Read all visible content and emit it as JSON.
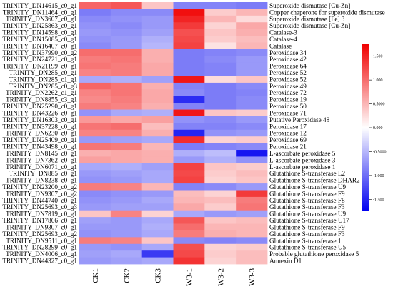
{
  "chart_data": {
    "type": "heatmap",
    "columns": [
      "CK1",
      "CK2",
      "CK3",
      "W3-1",
      "W3-2",
      "W3-3"
    ],
    "rows": [
      {
        "id": "TRINITY_DN14615_c0_g1",
        "label": "Superoxide dismutase [Cu-Zn]",
        "values": [
          1.05,
          1.15,
          0.4,
          -0.85,
          -0.85,
          -0.9
        ]
      },
      {
        "id": "TRINITY_DN11464_c0_g1",
        "label": "Copper chaperone for superoxide dismutase",
        "values": [
          -0.9,
          -0.8,
          -0.8,
          1.65,
          0.35,
          0.5
        ]
      },
      {
        "id": "TRINITY_DN3607_c0_g1",
        "label": "Superoxide dismutase [Fe] 3",
        "values": [
          -0.8,
          -0.75,
          -0.7,
          1.5,
          0.5,
          0.25
        ]
      },
      {
        "id": "TRINITY_DN25863_c0_g1",
        "label": "Superoxide dismutase [Cu-Zn]",
        "values": [
          -0.75,
          -0.8,
          -0.7,
          1.35,
          0.3,
          0.6
        ]
      },
      {
        "id": "TRINITY_DN14598_c0_g1",
        "label": "Catalase-3",
        "values": [
          -0.7,
          -0.75,
          -0.65,
          1.2,
          0.4,
          0.55
        ]
      },
      {
        "id": "TRINITY_DN15085_c0_g1",
        "label": "Catalase-4",
        "values": [
          -0.75,
          -0.7,
          -0.55,
          1.25,
          0.35,
          0.45
        ]
      },
      {
        "id": "TRINITY_DN16407_c0_g1",
        "label": "Catalase",
        "values": [
          -0.8,
          -0.7,
          -0.5,
          1.3,
          0.2,
          0.5
        ]
      },
      {
        "id": "TRINITY_DN37990_c0_g2",
        "label": "Peroxidase 34",
        "values": [
          1.0,
          1.0,
          0.55,
          -0.9,
          -0.85,
          -0.8
        ]
      },
      {
        "id": "TRINITY_DN24721_c0_g1",
        "label": "Peroxidase 42",
        "values": [
          0.9,
          0.95,
          0.55,
          -0.9,
          -0.8,
          -0.7
        ]
      },
      {
        "id": "TRINITY_DN21199_c0_g1",
        "label": "Peroxidase 64",
        "values": [
          0.95,
          0.9,
          0.6,
          -0.9,
          -0.85,
          -0.7
        ]
      },
      {
        "id": "TRINITY_DN285_c0_g1",
        "label": "Peroxidase 52",
        "values": [
          0.85,
          0.9,
          0.6,
          -0.9,
          -0.85,
          -0.7
        ]
      },
      {
        "id": "TRINITY_DN285_c1_g1",
        "label": "Peroxidase 52",
        "values": [
          -0.6,
          -0.55,
          -0.65,
          1.6,
          0.25,
          0.4
        ]
      },
      {
        "id": "TRINITY_DN285_c0_g3",
        "label": "Peroxidase 49",
        "values": [
          1.05,
          0.95,
          0.55,
          -0.85,
          -0.9,
          -0.8
        ]
      },
      {
        "id": "TRINITY_DN2262_c1_g1",
        "label": "Peroxidase 72",
        "values": [
          0.85,
          0.95,
          0.6,
          -0.8,
          -0.9,
          -0.85
        ]
      },
      {
        "id": "TRINITY_DN8855_c3_g1",
        "label": "Peroxidase 19",
        "values": [
          0.8,
          0.9,
          0.6,
          -1.45,
          -0.9,
          -0.8
        ]
      },
      {
        "id": "TRINITY_DN25290_c0_g1",
        "label": "Peroxidase 50",
        "values": [
          0.9,
          0.85,
          0.55,
          -0.85,
          -0.9,
          -0.8
        ]
      },
      {
        "id": "TRINITY_DN43226_c0_g1",
        "label": "Peroxidase 71",
        "values": [
          -0.75,
          -0.6,
          -0.55,
          1.6,
          0.4,
          0.35
        ]
      },
      {
        "id": "TRINITY_DN16303_c0_g1",
        "label": "Putative Peroxidase 48",
        "values": [
          0.7,
          0.6,
          0.65,
          -0.75,
          -0.8,
          -0.7
        ]
      },
      {
        "id": "TRINITY_DN37228_c0_g1",
        "label": "Peroxidase 17",
        "values": [
          0.95,
          1.0,
          0.45,
          -0.85,
          -0.85,
          -0.8
        ]
      },
      {
        "id": "TRINITY_DN6230_c0_g1",
        "label": "Peroxidase 12",
        "values": [
          0.85,
          0.85,
          0.55,
          -1.5,
          -0.75,
          -0.7
        ]
      },
      {
        "id": "TRINITY_DN25409_c0_g1",
        "label": "Peroxidase 69",
        "values": [
          -0.7,
          -0.65,
          -0.6,
          1.45,
          0.3,
          0.35
        ]
      },
      {
        "id": "TRINITY_DN43498_c0_g1",
        "label": "Peroxidase 21",
        "values": [
          0.95,
          0.9,
          0.5,
          -0.9,
          -0.85,
          -0.8
        ]
      },
      {
        "id": "TRINITY_DN8145_c0_g1",
        "label": "L-ascorbate peroxidase 5",
        "values": [
          0.55,
          0.6,
          0.55,
          -0.55,
          -0.45,
          -1.6
        ]
      },
      {
        "id": "TRINITY_DN7362_c0_g1",
        "label": "L-ascorbate peroxidase 3",
        "values": [
          0.65,
          0.6,
          0.55,
          -0.7,
          -0.55,
          -0.75
        ]
      },
      {
        "id": "TRINITY_DN6071_c0_g1",
        "label": "L-ascorbate peroxidase 1",
        "values": [
          -0.6,
          -0.55,
          -0.65,
          1.3,
          0.4,
          0.35
        ]
      },
      {
        "id": "TRINITY_DN885_c0_g1",
        "label": "Glutathione S-transferase L2",
        "values": [
          -0.7,
          -0.65,
          -0.6,
          1.25,
          0.35,
          0.45
        ]
      },
      {
        "id": "TRINITY_DN8238_c0_g1",
        "label": "Glutathione S-transferase DHAR2",
        "values": [
          -0.75,
          -0.7,
          -0.6,
          1.3,
          0.3,
          0.4
        ]
      },
      {
        "id": "TRINITY_DN23200_c0_g2",
        "label": "Glutathione S-transferase U9",
        "values": [
          0.9,
          0.85,
          0.5,
          -0.85,
          -0.8,
          -0.7
        ]
      },
      {
        "id": "TRINITY_DN9307_c0_g2",
        "label": "Glutathione S-transferase F9",
        "values": [
          -0.8,
          -0.75,
          -0.7,
          0.45,
          0.3,
          1.35
        ]
      },
      {
        "id": "TRINITY_DN44740_c0_g1",
        "label": "Glutathione S-transferase F8",
        "values": [
          -0.75,
          -0.7,
          -0.6,
          0.5,
          0.45,
          0.9
        ]
      },
      {
        "id": "TRINITY_DN25693_c0_g3",
        "label": "Glutathione S-transferase F3",
        "values": [
          -0.7,
          -0.65,
          -0.65,
          0.6,
          0.35,
          0.95
        ]
      },
      {
        "id": "TRINITY_DN7819_c0_g1",
        "label": "Glutathione S-transferase U9",
        "values": [
          0.4,
          0.85,
          0.3,
          -0.6,
          -0.7,
          -0.65
        ]
      },
      {
        "id": "TRINITY_DN17866_c0_g1",
        "label": "Glutathione S-transferase U17",
        "values": [
          -0.65,
          -0.7,
          -0.6,
          1.15,
          0.4,
          0.45
        ]
      },
      {
        "id": "TRINITY_DN9307_c0_g1",
        "label": "Glutathione S-transferase F9",
        "values": [
          -0.7,
          -0.7,
          -0.55,
          1.0,
          0.5,
          0.5
        ]
      },
      {
        "id": "TRINITY_DN25693_c0_g2",
        "label": "Glutathione S-transferase F3",
        "values": [
          -0.75,
          -0.7,
          -0.6,
          0.9,
          0.55,
          0.5
        ]
      },
      {
        "id": "TRINITY_DN9511_c0_g1",
        "label": "Glutathione S-transferase 1",
        "values": [
          0.9,
          0.85,
          0.4,
          -0.8,
          -0.85,
          -0.8
        ]
      },
      {
        "id": "TRINITY_DN28299_c0_g1",
        "label": "Glutathione S-transferase U5",
        "values": [
          -0.7,
          -0.75,
          -0.6,
          1.2,
          0.3,
          0.35
        ]
      },
      {
        "id": "TRINITY_DN4006_c0_g1",
        "label": "Probable glutathione peroxidase 5",
        "values": [
          -0.65,
          -0.6,
          -1.35,
          1.25,
          0.35,
          0.45
        ]
      },
      {
        "id": "TRINITY_DN44327_c0_g1",
        "label": "Annexin D1",
        "values": [
          -0.7,
          -0.65,
          -0.6,
          1.4,
          0.3,
          0.45
        ]
      }
    ],
    "color_scale": {
      "min": -1.75,
      "max": 1.75,
      "colors": [
        "#0000f0",
        "#ffffff",
        "#f00000"
      ]
    },
    "colorbar_ticks": [
      "1.500",
      "1.000",
      "0.5000",
      "0.000",
      "-0.5000",
      "-1.000",
      "-1.500"
    ],
    "colorbar_tick_values": [
      1.5,
      1.0,
      0.5,
      0.0,
      -0.5,
      -1.0,
      -1.5
    ]
  }
}
